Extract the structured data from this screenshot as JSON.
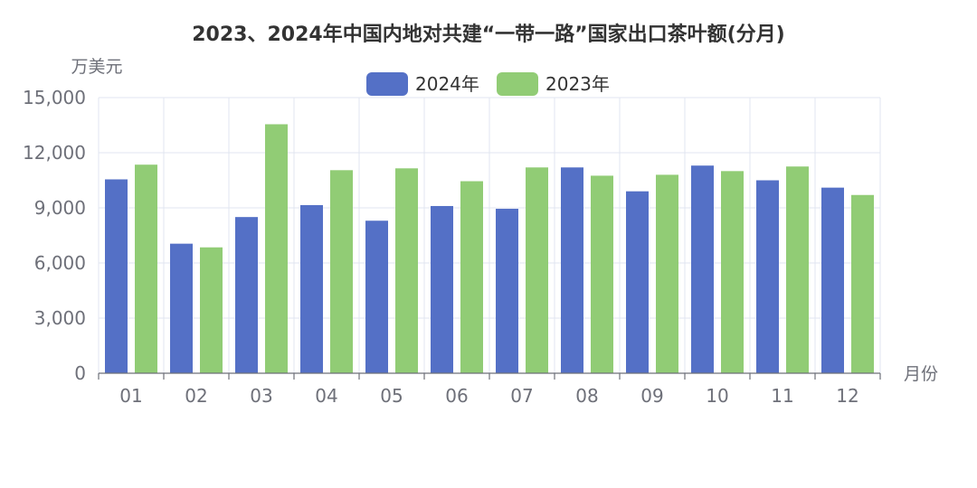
{
  "chart_data": {
    "type": "bar",
    "title": "2023、2024年中国内地对共建“一带一路”国家出口茶叶额(分月)",
    "ylabel": "万美元",
    "xlabel": "月份",
    "categories": [
      "01",
      "02",
      "03",
      "04",
      "05",
      "06",
      "07",
      "08",
      "09",
      "10",
      "11",
      "12"
    ],
    "ylim": [
      0,
      15000
    ],
    "yticks": [
      0,
      3000,
      6000,
      9000,
      12000,
      15000
    ],
    "ytick_labels": [
      "0",
      "3,000",
      "6,000",
      "9,000",
      "12,000",
      "15,000"
    ],
    "legend_position": "top-center",
    "grid": true,
    "series": [
      {
        "name": "2024年",
        "color": "#5470c6",
        "values": [
          10550,
          7050,
          8500,
          9150,
          8300,
          9100,
          8950,
          11200,
          9900,
          11300,
          10500,
          10100
        ]
      },
      {
        "name": "2023年",
        "color": "#91cc75",
        "values": [
          11350,
          6850,
          13550,
          11050,
          11150,
          10450,
          11200,
          10750,
          10800,
          11000,
          11250,
          9700
        ]
      }
    ]
  }
}
